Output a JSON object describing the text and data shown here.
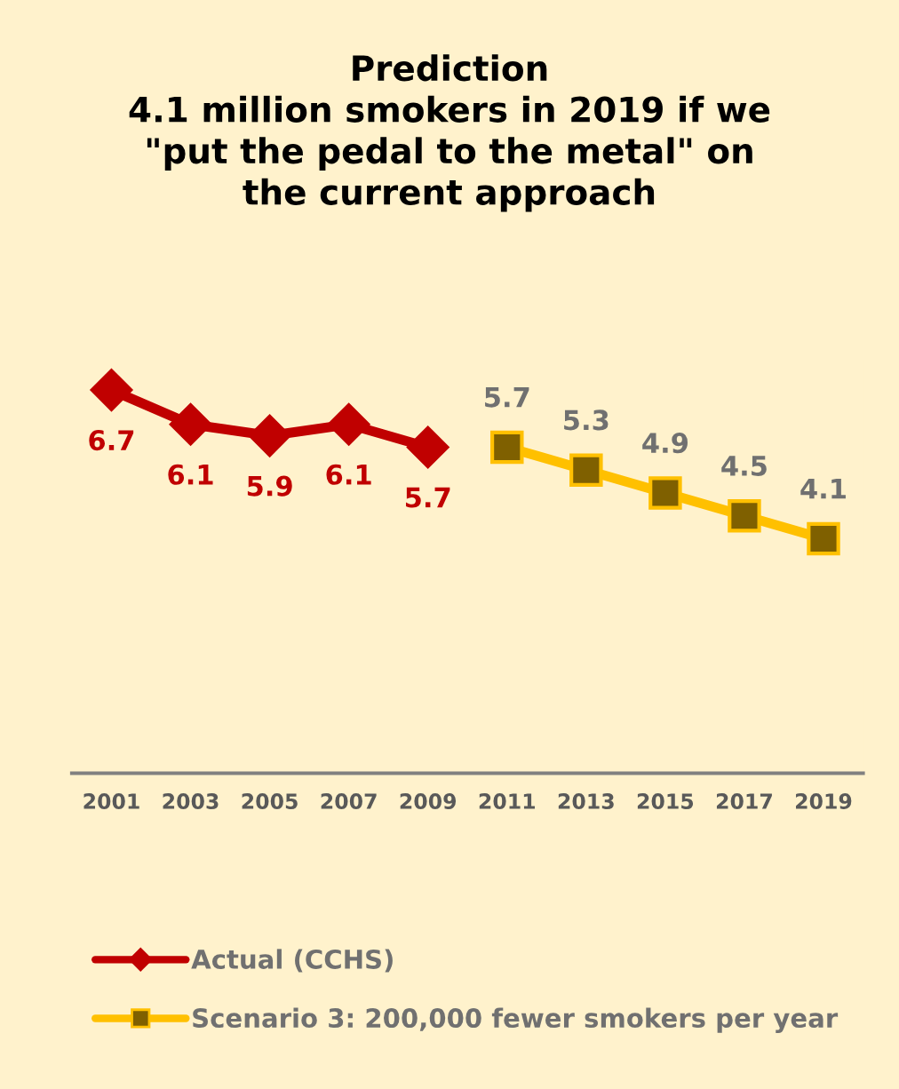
{
  "chart_data": {
    "type": "line",
    "title": "Prediction\n4.1 million smokers in 2019 if we\n\"put the pedal to the metal\" on\nthe current approach",
    "categories": [
      "2001",
      "2003",
      "2005",
      "2007",
      "2009",
      "2011",
      "2013",
      "2015",
      "2017",
      "2019"
    ],
    "series": [
      {
        "name": "Actual (CCHS)",
        "color": "#c00000",
        "marker": "diamond",
        "values": [
          6.7,
          6.1,
          5.9,
          6.1,
          5.7,
          null,
          null,
          null,
          null,
          null
        ]
      },
      {
        "name": "Scenario 3: 200,000 fewer smokers per year",
        "color": "#ffc000",
        "marker": "square",
        "values": [
          null,
          null,
          null,
          null,
          null,
          5.7,
          5.3,
          4.9,
          4.5,
          4.1
        ]
      }
    ],
    "relative": false,
    "data_labels": true,
    "legend": "bottom",
    "grid": false,
    "tick_labels": "x"
  }
}
